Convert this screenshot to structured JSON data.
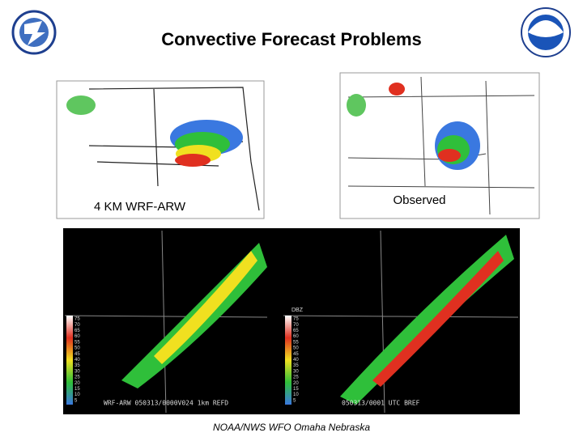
{
  "slide": {
    "title": "Convective Forecast Problems",
    "images": [
      {
        "label": "4 KM WRF-ARW"
      },
      {
        "label": "Observed"
      }
    ],
    "radar": {
      "left_caption": "WRF-ARW 050313/0000V024 1km REFD",
      "right_caption": "050313/0001 UTC BREF",
      "scale_title": "DBZ",
      "scale": [
        "75",
        "70",
        "65",
        "60",
        "55",
        "50",
        "45",
        "40",
        "35",
        "30",
        "25",
        "20",
        "15",
        "10",
        "5"
      ]
    },
    "footer": "NOAA/NWS WFO Omaha Nebraska"
  }
}
